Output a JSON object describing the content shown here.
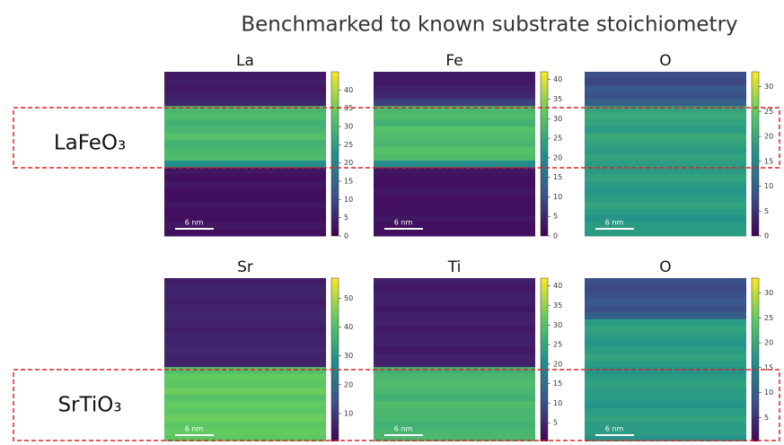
{
  "header": {
    "title": "Benchmarked to known substrate stoichiometry"
  },
  "labels": [
    "LaFeO₃",
    "SrTiO₃"
  ],
  "panels": [
    {
      "title": "La",
      "lim": [
        0,
        45
      ],
      "ticks": [
        0,
        5,
        10,
        15,
        20,
        25,
        30,
        35,
        40
      ],
      "scale_label": "6 nm",
      "rows": [
        3,
        4,
        3,
        4,
        5,
        30,
        31,
        29,
        30,
        32,
        29,
        30,
        31,
        22,
        3,
        2,
        3,
        2,
        2,
        3,
        2,
        2,
        3,
        2
      ]
    },
    {
      "title": "Fe",
      "lim": [
        0,
        42
      ],
      "ticks": [
        0,
        5,
        10,
        15,
        20,
        25,
        30,
        35,
        40
      ],
      "scale_label": "6 nm",
      "rows": [
        3,
        3,
        4,
        5,
        8,
        28,
        29,
        27,
        30,
        29,
        28,
        30,
        29,
        20,
        3,
        2,
        2,
        3,
        2,
        2,
        2,
        3,
        2,
        2
      ]
    },
    {
      "title": "O",
      "lim": [
        0,
        33
      ],
      "ticks": [
        0,
        5,
        10,
        15,
        20,
        25,
        30
      ],
      "scale_label": "6 nm",
      "rows": [
        8,
        7,
        9,
        8,
        10,
        19,
        20,
        19,
        18,
        20,
        19,
        18,
        19,
        18,
        18,
        19,
        18,
        17,
        18,
        19,
        18,
        17,
        18,
        18
      ]
    },
    {
      "title": "Sr",
      "lim": [
        0,
        57
      ],
      "ticks": [
        10,
        20,
        30,
        40,
        50
      ],
      "scale_label": "6 nm",
      "rows": [
        5,
        6,
        6,
        5,
        6,
        7,
        6,
        5,
        6,
        6,
        7,
        6,
        6,
        40,
        43,
        42,
        44,
        41,
        43,
        42,
        44,
        42,
        43,
        42
      ]
    },
    {
      "title": "Ti",
      "lim": [
        0,
        42
      ],
      "ticks": [
        5,
        10,
        15,
        20,
        25,
        30,
        35,
        40
      ],
      "scale_label": "6 nm",
      "rows": [
        4,
        3,
        4,
        4,
        3,
        4,
        4,
        3,
        4,
        4,
        3,
        4,
        4,
        27,
        28,
        29,
        28,
        27,
        29,
        28,
        28,
        27,
        28,
        28
      ]
    },
    {
      "title": "O",
      "lim": [
        0,
        33
      ],
      "ticks": [
        5,
        10,
        15,
        20,
        25,
        30
      ],
      "scale_label": "6 nm",
      "rows": [
        8,
        7,
        8,
        9,
        8,
        10,
        18,
        19,
        18,
        17,
        18,
        19,
        18,
        17,
        18,
        19,
        18,
        18,
        17,
        18,
        19,
        18,
        18,
        17
      ]
    }
  ]
}
